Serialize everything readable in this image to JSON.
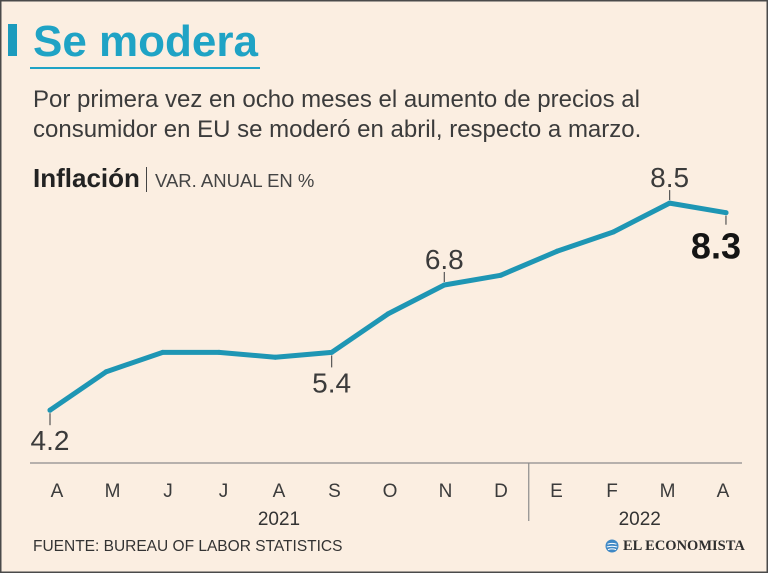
{
  "chart_data": {
    "type": "line",
    "title": "Se modera",
    "subtitle": [
      "Por primera vez en ocho meses el aumento de precios al",
      "consumidor en EU se moderó en abril, respecto a marzo."
    ],
    "ylabel": "Inflación",
    "ylabel_unit": "VAR. ANUAL EN %",
    "categories": [
      "A",
      "M",
      "J",
      "J",
      "A",
      "S",
      "O",
      "N",
      "D",
      "E",
      "F",
      "M",
      "A"
    ],
    "year_groups": [
      {
        "label": "2021",
        "first": 0,
        "last": 8
      },
      {
        "label": "2022",
        "first": 9,
        "last": 12
      }
    ],
    "values": [
      4.2,
      5.0,
      5.4,
      5.4,
      5.3,
      5.4,
      6.2,
      6.8,
      7.0,
      7.5,
      7.9,
      8.5,
      8.3
    ],
    "data_labels": [
      {
        "index": 0,
        "text": "4.2",
        "above": false
      },
      {
        "index": 5,
        "text": "5.4",
        "above": false
      },
      {
        "index": 7,
        "text": "6.8",
        "above": true
      },
      {
        "index": 11,
        "text": "8.5",
        "above": true
      },
      {
        "index": 12,
        "text": "8.3",
        "above": false,
        "emphasis": true
      }
    ],
    "ylim": [
      3,
      9
    ],
    "grid": false
  },
  "source": "FUENTE: BUREAU OF LABOR STATISTICS",
  "brand": {
    "name": "EL ECONOMISTA",
    "icon": "globe-icon"
  },
  "colors": {
    "background": "#fbeee1",
    "accent": "#1fa3c5",
    "line": "#1e96b4",
    "text": "#3b3b3b",
    "emphasis": "#141414"
  }
}
